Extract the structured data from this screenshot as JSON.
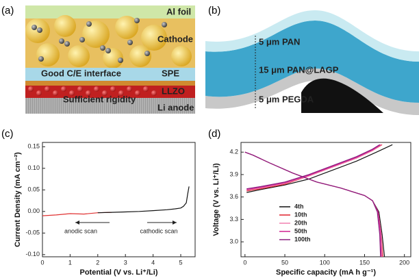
{
  "illustrations": [
    {
      "label": "(a)",
      "texts": [
        "Al foil",
        "Cathode",
        "Good C/E interface",
        "SPE",
        "LLZO",
        "Sufficient rigidity",
        "Li anode"
      ]
    },
    {
      "label": "(b)",
      "texts": [
        "5 μm PAN",
        "15 μm PAN@LAGP",
        "5 μm PEGDA"
      ]
    }
  ],
  "chart_data": [
    {
      "type": "line",
      "panel_label": "(c)",
      "x_label": "Potential (V vs. Li⁺/Li)",
      "y_label": "Current Density (mA cm⁻²)",
      "annotations": [
        "anodic scan",
        "cathodic scan"
      ],
      "xlim": [
        0,
        5.52
      ],
      "xticks": [
        0,
        1,
        2,
        3,
        4,
        5
      ],
      "ylim": [
        -0.105,
        0.16
      ],
      "yticks": [
        {
          "value": -0.1,
          "label": "-0.10"
        },
        -0.05,
        {
          "value": 0,
          "label": "0.00"
        },
        0.05,
        {
          "value": 0.1,
          "label": "0.10"
        },
        0.15
      ],
      "series": [
        {
          "color": "#e03030",
          "x": [
            0,
            0.5,
            1,
            1.5,
            2,
            2.5
          ],
          "values": [
            -0.01,
            -0.008,
            -0.005,
            -0.006,
            -0.003,
            -0.002
          ]
        },
        {
          "color": "#111111",
          "x": [
            2,
            2.5,
            3,
            3.5,
            4,
            4.5,
            4.8,
            5,
            5.1,
            5.2,
            5.25,
            5.3
          ],
          "values": [
            -0.003,
            -0.002,
            -0.001,
            0,
            0.002,
            0.004,
            0.006,
            0.008,
            0.012,
            0.02,
            0.04,
            0.058
          ]
        }
      ]
    },
    {
      "type": "line",
      "panel_label": "(d)",
      "x_label": "Specific capacity (mA h g⁻¹)",
      "y_label": "Voltage (V vs. Li⁺/Li)",
      "xlim": [
        -5,
        208
      ],
      "xticks": [
        0,
        50,
        100,
        150,
        200
      ],
      "ylim": [
        2.8,
        4.33
      ],
      "yticks": [
        {
          "value": 3,
          "label": "3.0"
        },
        3.3,
        3.6,
        3.9,
        4.2
      ],
      "legend": "lower center",
      "series": [
        {
          "name": "4th",
          "color": "#111111",
          "x": [
            2,
            20,
            50,
            80,
            110,
            140,
            165,
            185,
            null,
            0,
            10,
            30,
            60,
            90,
            120,
            150,
            160,
            168,
            172,
            175
          ],
          "values": [
            3.66,
            3.7,
            3.76,
            3.84,
            3.96,
            4.08,
            4.2,
            4.3,
            null,
            4.2,
            4.16,
            4.06,
            3.92,
            3.8,
            3.72,
            3.62,
            3.55,
            3.4,
            3.1,
            2.8
          ]
        },
        {
          "name": "10th",
          "color": "#e0202a",
          "x": [
            2,
            20,
            50,
            80,
            110,
            140,
            160,
            172,
            null,
            0,
            10,
            30,
            60,
            90,
            120,
            150,
            160,
            167,
            171,
            173
          ],
          "values": [
            3.68,
            3.71,
            3.77,
            3.88,
            4.0,
            4.12,
            4.22,
            4.3,
            null,
            4.2,
            4.16,
            4.06,
            3.92,
            3.8,
            3.72,
            3.62,
            3.55,
            3.4,
            3.1,
            2.8
          ]
        },
        {
          "name": "20th",
          "color": "#f080b0",
          "x": [
            2,
            20,
            50,
            80,
            110,
            140,
            160,
            171,
            null,
            0,
            10,
            30,
            60,
            90,
            120,
            150,
            160,
            167,
            171,
            172
          ],
          "values": [
            3.69,
            3.72,
            3.78,
            3.88,
            4.0,
            4.12,
            4.22,
            4.3,
            null,
            4.2,
            4.16,
            4.06,
            3.92,
            3.8,
            3.72,
            3.62,
            3.55,
            3.4,
            3.1,
            2.8
          ]
        },
        {
          "name": "50th",
          "color": "#d02090",
          "x": [
            2,
            20,
            50,
            80,
            110,
            140,
            160,
            170,
            null,
            0,
            10,
            30,
            60,
            90,
            120,
            150,
            160,
            167,
            170,
            171
          ],
          "values": [
            3.7,
            3.73,
            3.79,
            3.89,
            4.01,
            4.13,
            4.23,
            4.3,
            null,
            4.2,
            4.16,
            4.06,
            3.92,
            3.8,
            3.72,
            3.62,
            3.55,
            3.4,
            3.1,
            2.8
          ]
        },
        {
          "name": "100th",
          "color": "#8a2080",
          "x": [
            2,
            20,
            50,
            80,
            110,
            140,
            160,
            169,
            null,
            0,
            10,
            30,
            60,
            90,
            120,
            150,
            160,
            166,
            169,
            170
          ],
          "values": [
            3.71,
            3.74,
            3.8,
            3.9,
            4.02,
            4.14,
            4.24,
            4.3,
            null,
            4.2,
            4.16,
            4.06,
            3.92,
            3.8,
            3.72,
            3.62,
            3.55,
            3.4,
            3.1,
            2.8
          ]
        }
      ]
    }
  ]
}
